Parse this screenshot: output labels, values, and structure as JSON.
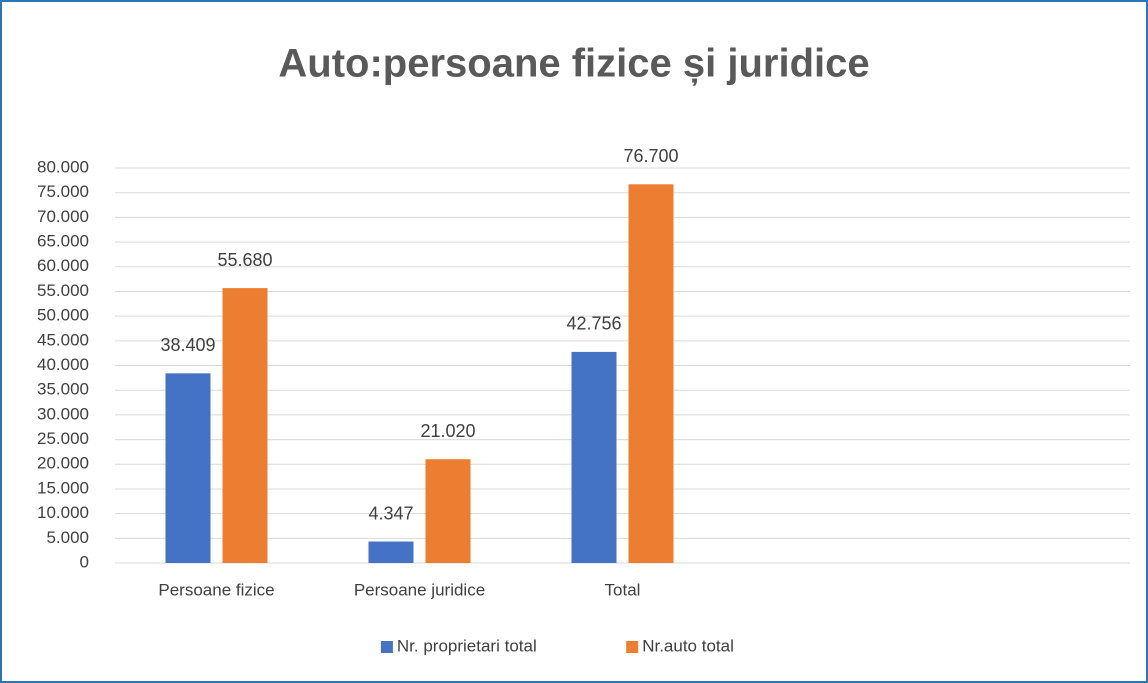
{
  "chart_data": {
    "type": "bar",
    "title": "Auto:persoane fizice și juridice",
    "categories": [
      "Persoane fizice",
      "Persoane juridice",
      "Total",
      null,
      null
    ],
    "series": [
      {
        "name": "Nr. proprietari total",
        "color": "#4472c4",
        "values": [
          38409,
          4347,
          42756,
          null,
          null
        ],
        "value_labels": [
          "38.409",
          "4.347",
          "42.756",
          null,
          null
        ]
      },
      {
        "name": "Nr.auto total",
        "color": "#ed7d31",
        "values": [
          55680,
          21020,
          76700,
          null,
          null
        ],
        "value_labels": [
          "55.680",
          "21.020",
          "76.700",
          null,
          null
        ]
      }
    ],
    "ylim": [
      0,
      80000
    ],
    "yticks": [
      0,
      {
        "value": 5000,
        "label": "5.000"
      },
      {
        "value": 10000,
        "label": "10.000"
      },
      {
        "value": 15000,
        "label": "15.000"
      },
      {
        "value": 20000,
        "label": "20.000"
      },
      {
        "value": 25000,
        "label": "25.000"
      },
      {
        "value": 30000,
        "label": "30.000"
      },
      {
        "value": 35000,
        "label": "35.000"
      },
      {
        "value": 40000,
        "label": "40.000"
      },
      {
        "value": 45000,
        "label": "45.000"
      },
      {
        "value": 50000,
        "label": "50.000"
      },
      {
        "value": 55000,
        "label": "55.000"
      },
      {
        "value": 60000,
        "label": "60.000"
      },
      {
        "value": 65000,
        "label": "65.000"
      },
      {
        "value": 70000,
        "label": "70.000"
      },
      {
        "value": 75000,
        "label": "75.000"
      },
      {
        "value": 80000,
        "label": "80.000"
      }
    ],
    "grid": true,
    "legend": "bottom"
  }
}
